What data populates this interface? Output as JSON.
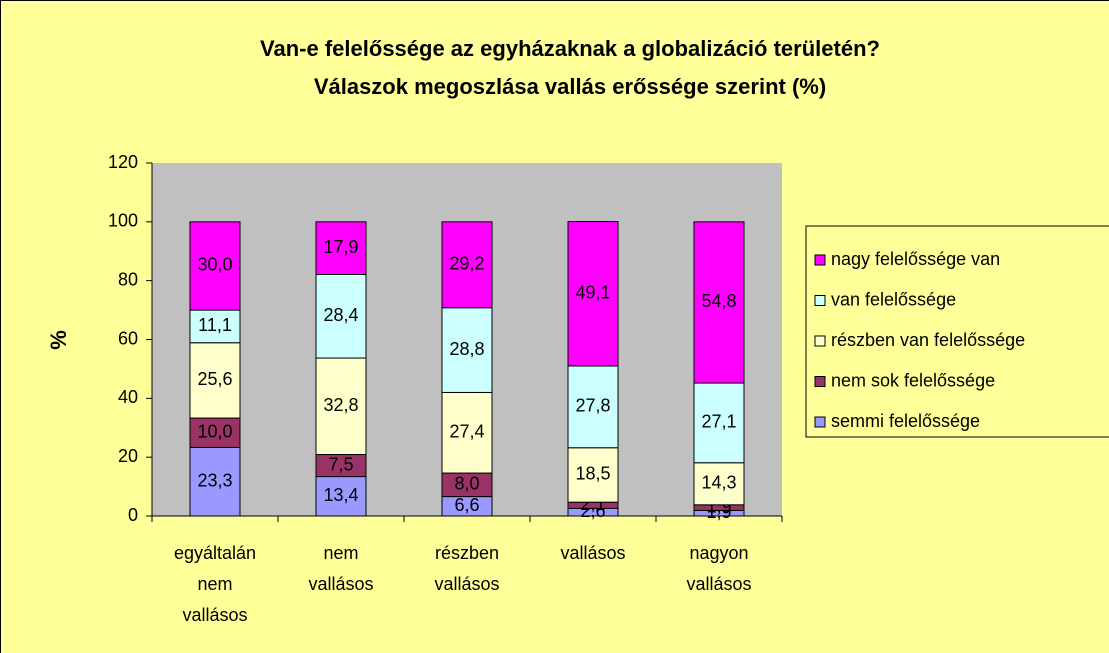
{
  "chart_data": {
    "type": "bar",
    "stacked": true,
    "title": [
      "Van-e felelőssége az egyházaknak a globalizáció területén?",
      "Válaszok megoszlása vallás erőssége szerint (%)"
    ],
    "y_label": "%",
    "categories": [
      "egyáltalán nem vallásos",
      "nem vallásos",
      "részben vallásos",
      "vallásos",
      "nagyon vallásos"
    ],
    "series": [
      {
        "name": "semmi felelőssége",
        "color": "#9999ff",
        "values": [
          23.3,
          13.4,
          6.6,
          2.6,
          1.9
        ],
        "value_labels": [
          "23,3",
          "13,4",
          "6,6",
          "2,6",
          "1,9"
        ]
      },
      {
        "name": "nem sok felelőssége",
        "color": "#993366",
        "values": [
          10.0,
          7.5,
          8.0,
          2.1,
          1.9
        ],
        "value_labels": [
          "10,0",
          "7,5",
          "8,0",
          "2,1",
          "1,9"
        ]
      },
      {
        "name": "részben van felelőssége",
        "color": "#ffffcc",
        "values": [
          25.6,
          32.8,
          27.4,
          18.5,
          14.3
        ],
        "value_labels": [
          "25,6",
          "32,8",
          "27,4",
          "18,5",
          "14,3"
        ]
      },
      {
        "name": "van felelőssége",
        "color": "#ccffff",
        "values": [
          11.1,
          28.4,
          28.8,
          27.8,
          27.1
        ],
        "value_labels": [
          "11,1",
          "28,4",
          "28,8",
          "27,8",
          "27,1"
        ]
      },
      {
        "name": "nagy felelőssége van",
        "color": "#ff00ff",
        "values": [
          30.0,
          17.9,
          29.2,
          49.1,
          54.8
        ],
        "value_labels": [
          "30,0",
          "17,9",
          "29,2",
          "49,1",
          "54,8"
        ]
      }
    ],
    "ylim": [
      0,
      120
    ],
    "yticks": [
      0,
      20,
      40,
      60,
      80,
      100,
      120
    ],
    "plot_background": "#c0c0c0",
    "background": "#ffff99",
    "legend": "right"
  }
}
